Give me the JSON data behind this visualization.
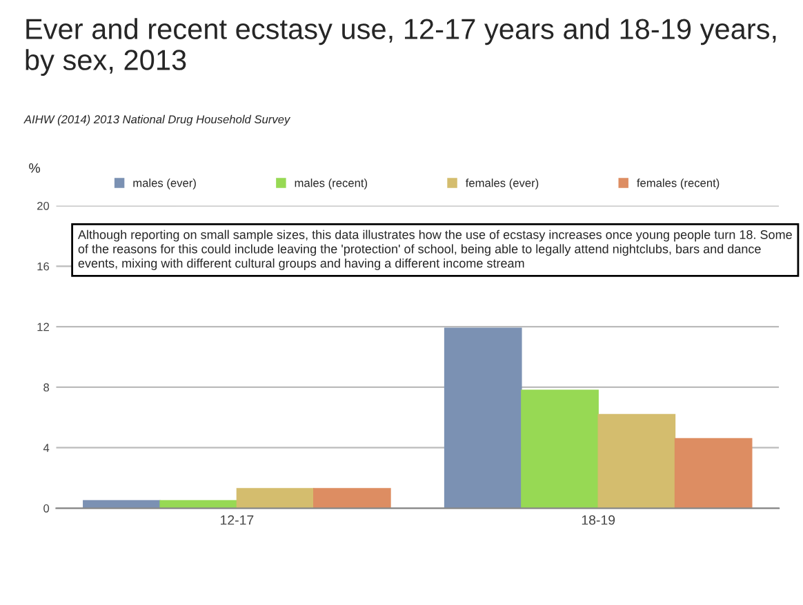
{
  "chart_data": {
    "type": "bar",
    "title": "Ever and recent ecstasy use, 12-17 years and 18-19 years, by sex, 2013",
    "subtitle": "AIHW (2014) 2013 National Drug Household Survey",
    "ylabel": "%",
    "categories": [
      "12-17",
      "18-19"
    ],
    "series": [
      {
        "name": "males (ever)",
        "color": "#7b91b3",
        "values": [
          0.5,
          11.9
        ]
      },
      {
        "name": "males (recent)",
        "color": "#97d954",
        "values": [
          0.5,
          7.8
        ]
      },
      {
        "name": "females (ever)",
        "color": "#d4bd6e",
        "values": [
          1.3,
          6.2
        ]
      },
      {
        "name": "females (recent)",
        "color": "#dd8d62",
        "values": [
          1.3,
          4.6
        ]
      }
    ],
    "ylim": [
      0,
      20
    ],
    "yticks": [
      0,
      4,
      8,
      12,
      16,
      20
    ],
    "grid": "y",
    "legend": "top",
    "annotations": [
      "Although reporting on small sample sizes, this data illustrates how the use of ecstasy increases once young people turn 18. Some of the reasons for this could include leaving the 'protection' of school, being able to legally attend nightclubs, bars and dance events, mixing with different cultural groups and having a different income stream"
    ]
  }
}
